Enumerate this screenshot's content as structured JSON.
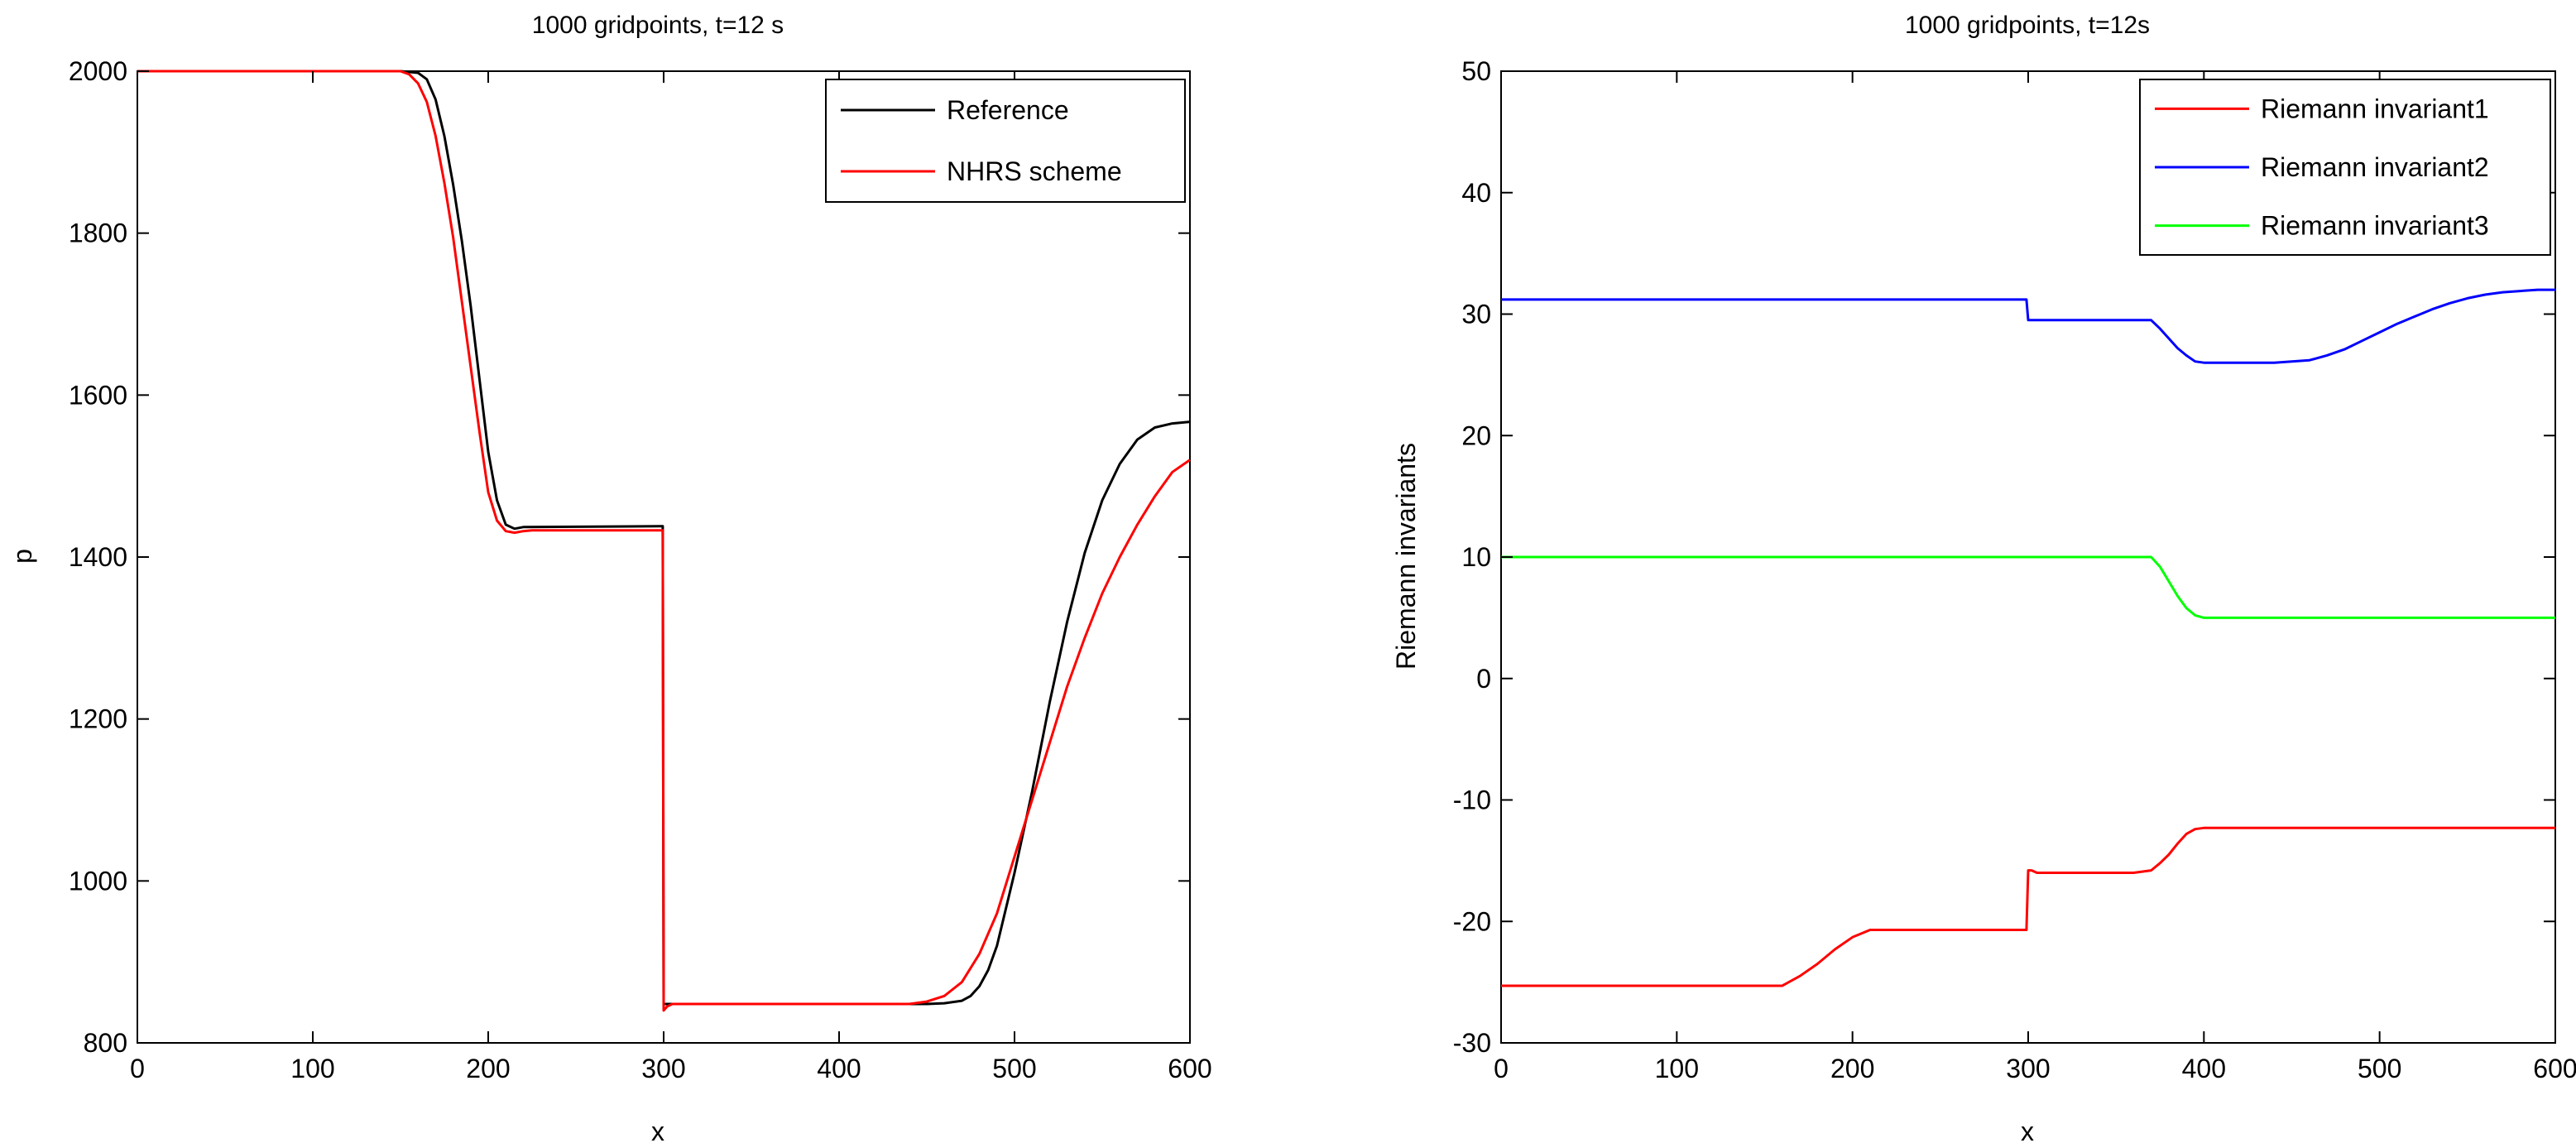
{
  "chart_data": [
    {
      "type": "line",
      "title": "1000 gridpoints, t=12 s",
      "xlabel": "x",
      "ylabel": "p",
      "xlim": [
        0,
        600
      ],
      "ylim": [
        800,
        2000
      ],
      "xticks": [
        0,
        100,
        200,
        300,
        400,
        500,
        600
      ],
      "yticks": [
        800,
        1000,
        1200,
        1400,
        1600,
        1800,
        2000
      ],
      "grid": false,
      "legend_position": "top-right",
      "series": [
        {
          "name": "Reference",
          "color": "#000000",
          "x": [
            0,
            150,
            160,
            165,
            170,
            175,
            180,
            185,
            190,
            195,
            200,
            205,
            210,
            215,
            220,
            298,
            299.5,
            300,
            310,
            320,
            325,
            400,
            450,
            460,
            470,
            475,
            480,
            485,
            490,
            500,
            510,
            520,
            530,
            540,
            550,
            560,
            570,
            580,
            590,
            600
          ],
          "y": [
            2000,
            2000,
            1998,
            1990,
            1965,
            1920,
            1860,
            1790,
            1710,
            1620,
            1530,
            1470,
            1440,
            1435,
            1437,
            1438,
            1438,
            848,
            848,
            848,
            848,
            848,
            848,
            849,
            852,
            858,
            870,
            890,
            920,
            1010,
            1110,
            1220,
            1320,
            1405,
            1470,
            1515,
            1545,
            1560,
            1565,
            1567
          ]
        },
        {
          "name": "NHRS scheme",
          "color": "#ff0000",
          "x": [
            0,
            150,
            155,
            160,
            165,
            170,
            175,
            180,
            185,
            190,
            195,
            200,
            205,
            210,
            215,
            220,
            225,
            298,
            299.5,
            300,
            302,
            305,
            310,
            320,
            400,
            440,
            450,
            460,
            470,
            480,
            490,
            500,
            510,
            520,
            530,
            540,
            550,
            560,
            570,
            580,
            590,
            600
          ],
          "y": [
            2000,
            2000,
            1996,
            1985,
            1962,
            1920,
            1862,
            1795,
            1715,
            1635,
            1555,
            1480,
            1445,
            1432,
            1430,
            1432,
            1433,
            1433,
            1433,
            840,
            845,
            848,
            848,
            848,
            848,
            848,
            851,
            858,
            875,
            910,
            960,
            1030,
            1100,
            1170,
            1240,
            1300,
            1355,
            1400,
            1440,
            1475,
            1505,
            1520
          ]
        }
      ]
    },
    {
      "type": "line",
      "title": "1000 gridpoints, t=12s",
      "xlabel": "x",
      "ylabel": "Riemann invariants",
      "xlim": [
        0,
        600
      ],
      "ylim": [
        -30,
        50
      ],
      "xticks": [
        0,
        100,
        200,
        300,
        400,
        500,
        600
      ],
      "yticks": [
        -30,
        -20,
        -10,
        0,
        10,
        20,
        30,
        40,
        50
      ],
      "grid": false,
      "legend_position": "top-right",
      "series": [
        {
          "name": "Riemann invariant1",
          "color": "#ff0000",
          "x": [
            0,
            160,
            170,
            180,
            190,
            200,
            210,
            220,
            297,
            299,
            300,
            302,
            305,
            310,
            320,
            360,
            370,
            375,
            380,
            385,
            390,
            395,
            400,
            450,
            500,
            550,
            600
          ],
          "y": [
            -25.3,
            -25.3,
            -24.5,
            -23.5,
            -22.3,
            -21.3,
            -20.7,
            -20.7,
            -20.7,
            -20.7,
            -15.8,
            -15.8,
            -16,
            -16,
            -16,
            -16,
            -15.8,
            -15.2,
            -14.5,
            -13.6,
            -12.8,
            -12.4,
            -12.3,
            -12.3,
            -12.3,
            -12.3,
            -12.3
          ]
        },
        {
          "name": "Riemann invariant2",
          "color": "#0000ff",
          "x": [
            0,
            297,
            299,
            300,
            310,
            320,
            370,
            375,
            380,
            385,
            390,
            395,
            400,
            420,
            440,
            460,
            470,
            480,
            490,
            500,
            510,
            520,
            530,
            540,
            550,
            560,
            570,
            580,
            590,
            600
          ],
          "y": [
            31.2,
            31.2,
            31.2,
            29.5,
            29.5,
            29.5,
            29.5,
            28.8,
            28,
            27.2,
            26.6,
            26.1,
            26,
            26,
            26,
            26.2,
            26.6,
            27.1,
            27.8,
            28.5,
            29.2,
            29.8,
            30.4,
            30.9,
            31.3,
            31.6,
            31.8,
            31.9,
            32,
            32
          ]
        },
        {
          "name": "Riemann invariant3",
          "color": "#00ff00",
          "x": [
            0,
            370,
            375,
            380,
            385,
            390,
            395,
            400,
            450,
            500,
            550,
            600
          ],
          "y": [
            10,
            10,
            9.2,
            8,
            6.8,
            5.8,
            5.2,
            5,
            5,
            5,
            5,
            5
          ]
        }
      ]
    }
  ]
}
